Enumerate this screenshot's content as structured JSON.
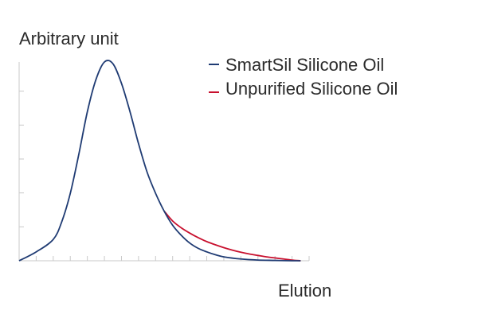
{
  "chart_data": {
    "type": "line",
    "xlabel": "Elution",
    "ylabel": "Arbitrary unit",
    "legend_position": "top-right",
    "grid": false,
    "xlim": [
      0,
      17
    ],
    "ylim": [
      0,
      5.6
    ],
    "series": [
      {
        "name": "SmartSil Silicone Oil",
        "color": "#1f3b73",
        "x": [
          0,
          1,
          2,
          2.5,
          3,
          3.5,
          4,
          4.5,
          5,
          5.5,
          6,
          6.5,
          7,
          7.5,
          8,
          8.5,
          9,
          9.5,
          10,
          10.5,
          11,
          11.5,
          12,
          13,
          14,
          15,
          16,
          16.5
        ],
        "y": [
          0,
          0.25,
          0.6,
          1.1,
          1.9,
          3.0,
          4.2,
          5.1,
          5.6,
          5.55,
          5.0,
          4.2,
          3.3,
          2.5,
          1.9,
          1.4,
          1.0,
          0.72,
          0.5,
          0.35,
          0.25,
          0.17,
          0.11,
          0.05,
          0.02,
          0.01,
          0.0,
          0.0
        ]
      },
      {
        "name": "Unpurified Silicone Oil",
        "color": "#c8102e",
        "x": [
          8.5,
          9,
          9.5,
          10,
          10.5,
          11,
          11.5,
          12,
          12.5,
          13,
          13.5,
          14,
          14.5,
          15,
          15.5,
          16,
          16.5
        ],
        "y": [
          1.4,
          1.12,
          0.93,
          0.78,
          0.65,
          0.54,
          0.45,
          0.37,
          0.3,
          0.24,
          0.19,
          0.15,
          0.11,
          0.08,
          0.05,
          0.02,
          0.0
        ]
      }
    ]
  }
}
